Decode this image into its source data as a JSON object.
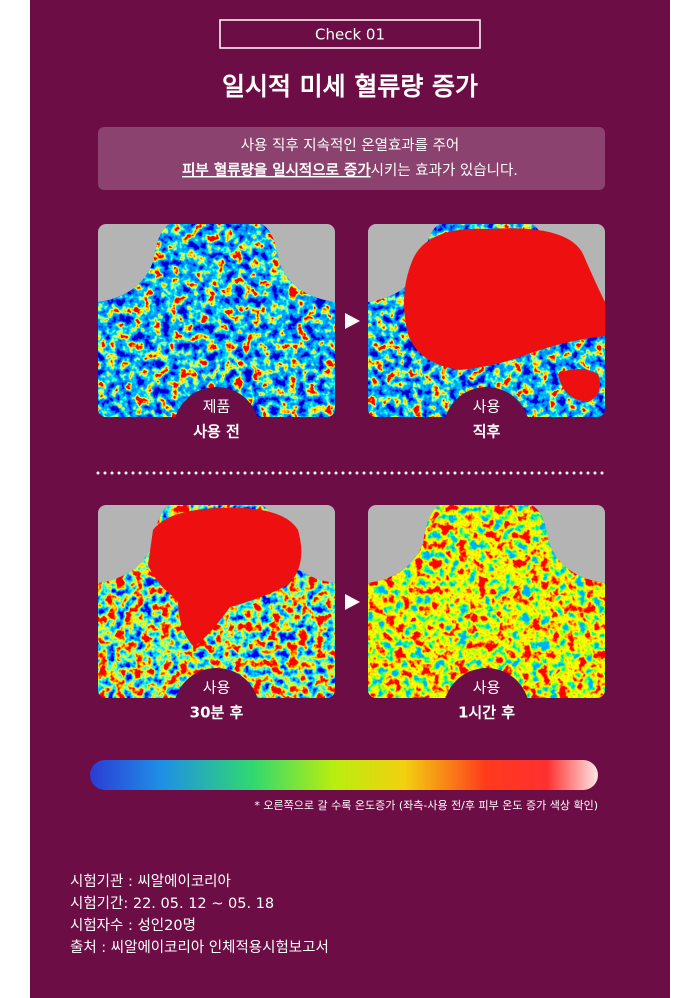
{
  "badge": "Check 01",
  "title": "일시적 미세 혈류량 증가",
  "description": {
    "line1": "사용 직후 지속적인 온열효과를 주어",
    "emphasis": "피부 혈류량을 일시적으로 증가",
    "rest": "시키는 효과가 있습니다."
  },
  "panels": [
    {
      "top": "제품",
      "bottom": "사용 전"
    },
    {
      "top": "사용",
      "bottom": "직후"
    },
    {
      "top": "사용",
      "bottom": "30분 후"
    },
    {
      "top": "사용",
      "bottom": "1시간 후"
    }
  ],
  "footnote": "* 오른쪽으로 갈 수록 온도증가 (좌측-사용 전/후 피부 온도 증가 색상 확인)",
  "info": [
    "시험기관 : 씨알에이코리아",
    "시험기간: 22. 05. 12 ~ 05. 18",
    "시험자수 : 성인20명",
    "출처 : 씨알에이코리아 인체적용시험보고서"
  ]
}
